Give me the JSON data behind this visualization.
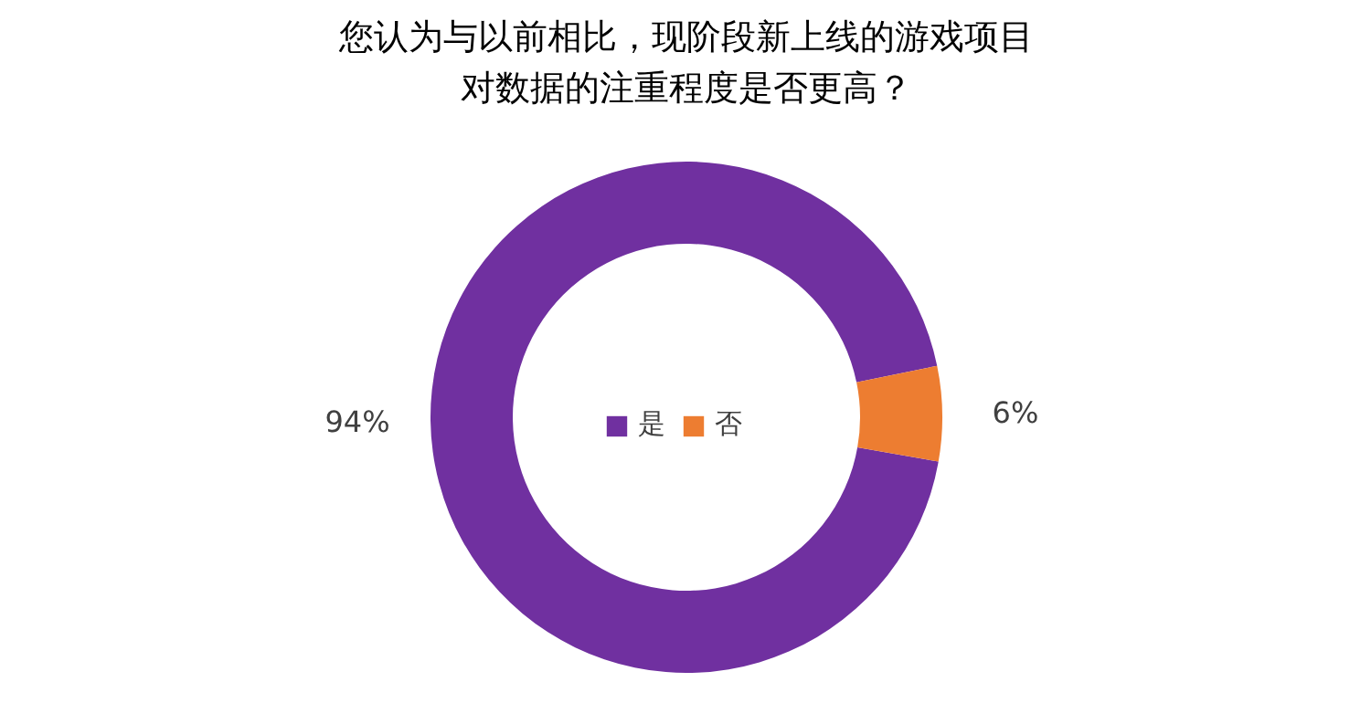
{
  "chart_data": {
    "type": "donut",
    "title": "您认为与以前相比，现阶段新上线的游戏项目对数据的注重程度是否更高？",
    "categories": [
      "是",
      "否"
    ],
    "values": [
      94,
      6
    ],
    "colors": [
      "#7030a0",
      "#ed7d31"
    ],
    "value_labels": [
      "94%",
      "6%"
    ],
    "legend": "center"
  }
}
